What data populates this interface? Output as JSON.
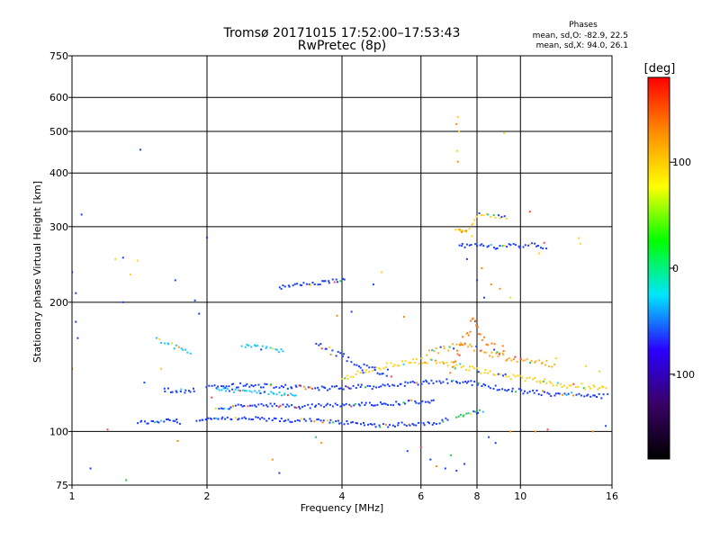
{
  "chart_data": {
    "type": "scatter",
    "title": "Tromsø 20171015 17:52:00–17:53:43",
    "subtitle": "RwPretec (8p)",
    "xlabel": "Frequency [MHz]",
    "ylabel": "Stationary phase Virtual Height [km]",
    "x_scale": "log",
    "y_scale": "log",
    "xlim": [
      1,
      16
    ],
    "ylim": [
      75,
      750
    ],
    "x_ticks": [
      1,
      2,
      4,
      6,
      8,
      10,
      16
    ],
    "y_ticks": [
      75,
      100,
      200,
      300,
      400,
      500,
      600,
      750
    ],
    "grid": true,
    "phase_info": {
      "title": "Phases",
      "line_o": "mean, sd,O:  -82.9, 22.5",
      "line_x": "mean, sd,X:  94.0, 26.1"
    },
    "colorbar": {
      "label": "[deg]",
      "ticks": [
        "100",
        "0",
        "-100"
      ],
      "range": [
        -180,
        180
      ],
      "colors": [
        "#000000",
        "#3a0066",
        "#2a00ff",
        "#00e5ff",
        "#00ff00",
        "#ffff00",
        "#ff8c00",
        "#ff0000"
      ]
    },
    "traces": [
      {
        "name": "",
        "x": [
          1.4,
          1.5,
          1.6,
          1.7,
          1.75
        ],
        "y": [
          105,
          105,
          106,
          106,
          105
        ],
        "color": "#1a3cff",
        "spread": 0.01
      },
      {
        "name": "",
        "x": [
          1.9,
          2.2,
          2.6,
          3.0,
          3.5,
          4.0,
          4.5,
          5.0,
          5.5,
          6.0,
          6.5,
          7.0
        ],
        "y": [
          106,
          107,
          107,
          106,
          106,
          105,
          104,
          103,
          104,
          104,
          105,
          107
        ],
        "color": "#1a3cff",
        "spread": 0.01
      },
      {
        "name": "",
        "x": [
          7.2,
          7.5,
          8.0,
          8.3
        ],
        "y": [
          108,
          109,
          111,
          112
        ],
        "color": "#22cc55",
        "spread": 0.01
      },
      {
        "name": "",
        "x": [
          2.0,
          2.3,
          2.6,
          3.0,
          3.4,
          3.8,
          4.2,
          4.6,
          5.0,
          5.5,
          6.0,
          6.5,
          7.0,
          7.5,
          8.0,
          9.0,
          10.0,
          11.0,
          12.0,
          13.0,
          14.0,
          15.0,
          15.8
        ],
        "y": [
          127,
          128,
          128,
          127,
          126,
          126,
          127,
          127,
          128,
          129,
          130,
          131,
          131,
          131,
          129,
          126,
          124,
          123,
          122,
          122,
          121,
          121,
          121
        ],
        "color": "#1a3cff",
        "spread": 0.012
      },
      {
        "name": "",
        "x": [
          2.1,
          2.4,
          2.8,
          3.2,
          3.6,
          4.0,
          4.4,
          4.8,
          5.2,
          5.6,
          6.0,
          6.5
        ],
        "y": [
          113,
          115,
          115,
          114,
          115,
          115,
          116,
          116,
          116,
          117,
          117,
          118
        ],
        "color": "#1a3cff",
        "spread": 0.01
      },
      {
        "name": "",
        "x": [
          2.1,
          2.4,
          2.8,
          3.2
        ],
        "y": [
          126,
          124,
          123,
          121
        ],
        "color": "#1ac8ff",
        "spread": 0.01
      },
      {
        "name": "",
        "x": [
          4.0,
          4.5,
          5.0,
          5.5,
          6.0,
          6.6,
          7.0,
          7.5,
          8.0,
          8.5,
          9.0,
          10.0,
          11.0,
          12.0,
          13.0,
          14.0,
          15.0,
          15.7
        ],
        "y": [
          133,
          138,
          142,
          145,
          146,
          145,
          143,
          141,
          139,
          137,
          135,
          133,
          131,
          129,
          128,
          127,
          126,
          126
        ],
        "color": "#ffd21a",
        "spread": 0.015
      },
      {
        "name": "",
        "x": [
          6.2,
          6.8,
          7.3,
          8.0,
          8.6,
          9.2,
          10.0,
          11.0,
          12.0
        ],
        "y": [
          152,
          156,
          160,
          156,
          152,
          149,
          147,
          145,
          143
        ],
        "color": "#ffb020",
        "spread": 0.018
      },
      {
        "name": "",
        "x": [
          2.4,
          2.6,
          2.8,
          3.0
        ],
        "y": [
          159,
          157,
          155,
          154
        ],
        "color": "#1ac8ff",
        "spread": 0.012
      },
      {
        "name": "",
        "x": [
          1.55,
          1.65,
          1.75,
          1.85
        ],
        "y": [
          165,
          160,
          155,
          150
        ],
        "color": "#1ac8ff",
        "spread": 0.015
      },
      {
        "name": "",
        "x": [
          1.6,
          1.7,
          1.8,
          1.9
        ],
        "y": [
          125,
          124,
          124,
          125
        ],
        "color": "#1a3cff",
        "spread": 0.012
      },
      {
        "name": "",
        "x": [
          3.5,
          3.7,
          4.0,
          4.2,
          4.4,
          4.6,
          4.9,
          5.2
        ],
        "y": [
          158,
          155,
          150,
          145,
          142,
          140,
          138,
          136
        ],
        "color": "#1a3cff",
        "spread": 0.02
      },
      {
        "name": "",
        "x": [
          2.9,
          3.1,
          3.3,
          3.6,
          3.8,
          4.1
        ],
        "y": [
          216,
          218,
          220,
          222,
          224,
          226
        ],
        "color": "#1a3cff",
        "spread": 0.01
      },
      {
        "name": "",
        "x": [
          7.3,
          7.6,
          8.0,
          8.5,
          9.0,
          9.5,
          10.0,
          10.5,
          11.0,
          11.5
        ],
        "y": [
          272,
          270,
          272,
          270,
          268,
          272,
          270,
          274,
          270,
          268
        ],
        "color": "#1a3cff",
        "spread": 0.01
      },
      {
        "name": "",
        "x": [
          7.2,
          7.4,
          7.6,
          8.1,
          8.5,
          9.0,
          9.4
        ],
        "y": [
          294,
          293,
          292,
          320,
          318,
          316,
          314
        ],
        "color": "#ffd21a",
        "spread": 0.008
      },
      {
        "name": "",
        "x": [
          7.0,
          7.2,
          7.4,
          7.6,
          7.8,
          8.0,
          8.2,
          8.6,
          9.0,
          9.4
        ],
        "y": [
          140,
          150,
          160,
          170,
          180,
          175,
          165,
          160,
          155,
          150
        ],
        "color": "#ff7f1a",
        "spread": 0.03
      }
    ],
    "scatter": [
      {
        "x": 1.0,
        "y": 235,
        "c": "#1a3cff"
      },
      {
        "x": 1.02,
        "y": 210,
        "c": "#1a3cff"
      },
      {
        "x": 1.05,
        "y": 320,
        "c": "#1a3cff"
      },
      {
        "x": 1.02,
        "y": 180,
        "c": "#1a3cff"
      },
      {
        "x": 1.03,
        "y": 165,
        "c": "#1a3cff"
      },
      {
        "x": 1.0,
        "y": 140,
        "c": "#ff8c00"
      },
      {
        "x": 1.1,
        "y": 82,
        "c": "#1a3cff"
      },
      {
        "x": 1.2,
        "y": 101,
        "c": "#ff4040"
      },
      {
        "x": 1.25,
        "y": 252,
        "c": "#ffd21a"
      },
      {
        "x": 1.3,
        "y": 254,
        "c": "#1a3cff"
      },
      {
        "x": 1.35,
        "y": 232,
        "c": "#ffd21a"
      },
      {
        "x": 1.4,
        "y": 250,
        "c": "#ffd21a"
      },
      {
        "x": 1.42,
        "y": 453,
        "c": "#1a3cff"
      },
      {
        "x": 1.3,
        "y": 200,
        "c": "#1a3cff"
      },
      {
        "x": 1.32,
        "y": 77,
        "c": "#22cc55"
      },
      {
        "x": 1.45,
        "y": 130,
        "c": "#1a3cff"
      },
      {
        "x": 1.58,
        "y": 140,
        "c": "#ffd21a"
      },
      {
        "x": 1.7,
        "y": 225,
        "c": "#1a3cff"
      },
      {
        "x": 1.88,
        "y": 202,
        "c": "#1a3cff"
      },
      {
        "x": 1.92,
        "y": 188,
        "c": "#1a3cff"
      },
      {
        "x": 1.72,
        "y": 95,
        "c": "#ff8c00"
      },
      {
        "x": 2.0,
        "y": 283,
        "c": "#1a3cff"
      },
      {
        "x": 2.05,
        "y": 120,
        "c": "#ff4040"
      },
      {
        "x": 2.8,
        "y": 86,
        "c": "#ff8c00"
      },
      {
        "x": 2.9,
        "y": 80,
        "c": "#1a3cff"
      },
      {
        "x": 3.5,
        "y": 97,
        "c": "#22cc55"
      },
      {
        "x": 3.6,
        "y": 94,
        "c": "#ff8c00"
      },
      {
        "x": 3.9,
        "y": 186,
        "c": "#ff8c00"
      },
      {
        "x": 4.2,
        "y": 190,
        "c": "#1a3cff"
      },
      {
        "x": 4.7,
        "y": 220,
        "c": "#1a3cff"
      },
      {
        "x": 4.9,
        "y": 235,
        "c": "#ffd21a"
      },
      {
        "x": 5.5,
        "y": 185,
        "c": "#ff8c00"
      },
      {
        "x": 5.6,
        "y": 90,
        "c": "#1a3cff"
      },
      {
        "x": 6.0,
        "y": 92,
        "c": "#ff4040"
      },
      {
        "x": 6.3,
        "y": 86,
        "c": "#1a3cff"
      },
      {
        "x": 6.5,
        "y": 83,
        "c": "#ff8c00"
      },
      {
        "x": 6.8,
        "y": 82,
        "c": "#1a3cff"
      },
      {
        "x": 7.0,
        "y": 88,
        "c": "#22cc55"
      },
      {
        "x": 7.2,
        "y": 81,
        "c": "#1a3cff"
      },
      {
        "x": 7.5,
        "y": 84,
        "c": "#1a3cff"
      },
      {
        "x": 7.25,
        "y": 540,
        "c": "#ffd21a"
      },
      {
        "x": 7.2,
        "y": 520,
        "c": "#ff8c00"
      },
      {
        "x": 7.3,
        "y": 500,
        "c": "#ffd21a"
      },
      {
        "x": 7.22,
        "y": 450,
        "c": "#ffd21a"
      },
      {
        "x": 7.25,
        "y": 425,
        "c": "#ff8c00"
      },
      {
        "x": 9.2,
        "y": 495,
        "c": "#ffd21a"
      },
      {
        "x": 10.5,
        "y": 325,
        "c": "#ff4040"
      },
      {
        "x": 11.3,
        "y": 275,
        "c": "#ff4040"
      },
      {
        "x": 11.0,
        "y": 260,
        "c": "#ffd21a"
      },
      {
        "x": 13.5,
        "y": 282,
        "c": "#ffd21a"
      },
      {
        "x": 13.6,
        "y": 274,
        "c": "#ffd21a"
      },
      {
        "x": 12.0,
        "y": 148,
        "c": "#ffd21a"
      },
      {
        "x": 14.0,
        "y": 142,
        "c": "#ffd21a"
      },
      {
        "x": 15.0,
        "y": 138,
        "c": "#ffd21a"
      },
      {
        "x": 15.5,
        "y": 103,
        "c": "#1a3cff"
      },
      {
        "x": 14.5,
        "y": 100,
        "c": "#ff8c00"
      },
      {
        "x": 11.5,
        "y": 101,
        "c": "#ff4040"
      },
      {
        "x": 10.8,
        "y": 100,
        "c": "#ff8c00"
      },
      {
        "x": 9.5,
        "y": 100,
        "c": "#ff8c00"
      },
      {
        "x": 8.5,
        "y": 97,
        "c": "#1a3cff"
      },
      {
        "x": 8.8,
        "y": 94,
        "c": "#1a3cff"
      },
      {
        "x": 7.6,
        "y": 252,
        "c": "#1a3cff"
      },
      {
        "x": 7.8,
        "y": 285,
        "c": "#ffd21a"
      },
      {
        "x": 8.2,
        "y": 240,
        "c": "#ff8c00"
      },
      {
        "x": 8.0,
        "y": 225,
        "c": "#1a3cff"
      },
      {
        "x": 8.6,
        "y": 220,
        "c": "#ff8c00"
      },
      {
        "x": 9.0,
        "y": 215,
        "c": "#ff8c00"
      },
      {
        "x": 9.5,
        "y": 205,
        "c": "#ffd21a"
      },
      {
        "x": 8.3,
        "y": 205,
        "c": "#1a3cff"
      }
    ]
  }
}
